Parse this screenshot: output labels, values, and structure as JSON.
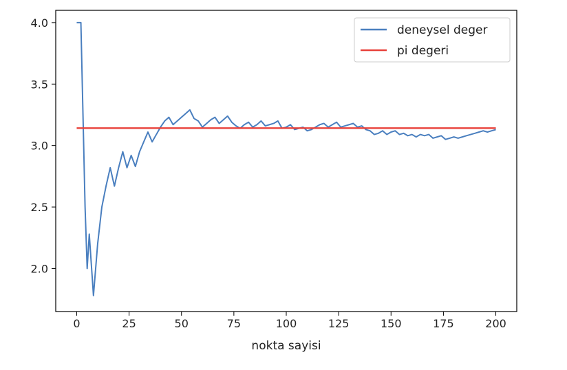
{
  "chart_data": {
    "type": "line",
    "xlabel": "nokta sayisi",
    "ylabel": "",
    "xlim": [
      -10,
      210
    ],
    "ylim": [
      1.65,
      4.1
    ],
    "xticks": [
      0,
      25,
      50,
      75,
      100,
      125,
      150,
      175,
      200
    ],
    "yticks": [
      2.0,
      2.5,
      3.0,
      3.5,
      4.0
    ],
    "ytick_labels": [
      "2.0",
      "2.5",
      "3.0",
      "3.5",
      "4.0"
    ],
    "grid": false,
    "legend_position": "top-right",
    "series": [
      {
        "name": "deneysel deger",
        "color": "#4a7fbf",
        "x": [
          0,
          2,
          4,
          5,
          6,
          8,
          10,
          12,
          14,
          16,
          18,
          20,
          22,
          24,
          26,
          28,
          30,
          32,
          34,
          36,
          38,
          40,
          42,
          44,
          46,
          48,
          50,
          52,
          54,
          56,
          58,
          60,
          62,
          64,
          66,
          68,
          70,
          72,
          74,
          76,
          78,
          80,
          82,
          84,
          86,
          88,
          90,
          92,
          94,
          96,
          98,
          100,
          102,
          104,
          106,
          108,
          110,
          112,
          114,
          116,
          118,
          120,
          122,
          124,
          126,
          128,
          130,
          132,
          134,
          136,
          138,
          140,
          142,
          144,
          146,
          148,
          150,
          152,
          154,
          156,
          158,
          160,
          162,
          164,
          166,
          168,
          170,
          172,
          174,
          176,
          178,
          180,
          182,
          184,
          186,
          188,
          190,
          192,
          194,
          196,
          198,
          200
        ],
        "y": [
          4.0,
          4.0,
          2.5,
          2.0,
          2.28,
          1.78,
          2.2,
          2.5,
          2.67,
          2.82,
          2.67,
          2.82,
          2.95,
          2.82,
          2.92,
          2.83,
          2.95,
          3.03,
          3.11,
          3.03,
          3.09,
          3.15,
          3.2,
          3.23,
          3.17,
          3.2,
          3.23,
          3.26,
          3.29,
          3.22,
          3.2,
          3.15,
          3.18,
          3.21,
          3.23,
          3.18,
          3.21,
          3.24,
          3.19,
          3.16,
          3.14,
          3.17,
          3.19,
          3.15,
          3.17,
          3.2,
          3.16,
          3.17,
          3.18,
          3.2,
          3.14,
          3.15,
          3.17,
          3.13,
          3.14,
          3.15,
          3.12,
          3.13,
          3.15,
          3.17,
          3.18,
          3.15,
          3.17,
          3.19,
          3.15,
          3.16,
          3.17,
          3.18,
          3.15,
          3.16,
          3.13,
          3.12,
          3.09,
          3.1,
          3.12,
          3.09,
          3.11,
          3.12,
          3.09,
          3.1,
          3.08,
          3.09,
          3.07,
          3.09,
          3.08,
          3.09,
          3.06,
          3.07,
          3.08,
          3.05,
          3.06,
          3.07,
          3.06,
          3.07,
          3.08,
          3.09,
          3.1,
          3.11,
          3.12,
          3.11,
          3.12,
          3.13
        ]
      },
      {
        "name": "pi degeri",
        "color": "#e8413a",
        "x": [
          0,
          200
        ],
        "y": [
          3.14159,
          3.14159
        ]
      }
    ]
  }
}
